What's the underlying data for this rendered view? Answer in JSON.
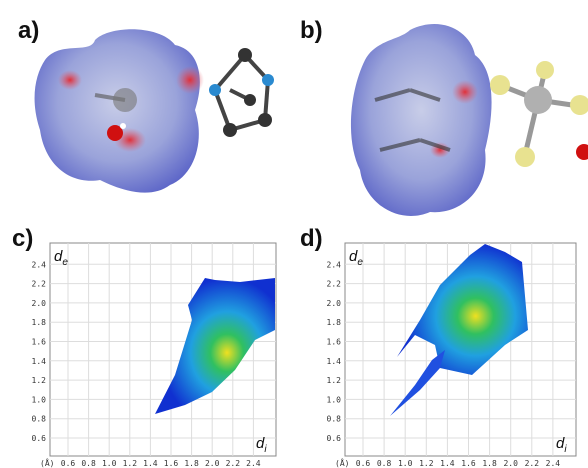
{
  "panels": [
    {
      "label": "a)"
    },
    {
      "label": "b)"
    },
    {
      "label": "c)",
      "y_axis": "d",
      "y_sub": "e",
      "x_axis": "d",
      "x_sub": "i",
      "unit": "(Å)",
      "xticks": [
        "0.6",
        "0.8",
        "1.0",
        "1.2",
        "1.4",
        "1.6",
        "1.8",
        "2.0",
        "2.2",
        "2.4"
      ],
      "yticks": [
        "0.6",
        "0.8",
        "1.0",
        "1.2",
        "1.4",
        "1.6",
        "1.8",
        "2.0",
        "2.2",
        "2.4"
      ]
    },
    {
      "label": "d)",
      "y_axis": "d",
      "y_sub": "e",
      "x_axis": "d",
      "x_sub": "i",
      "unit": "(Å)",
      "xticks": [
        "0.6",
        "0.8",
        "1.0",
        "1.2",
        "1.4",
        "1.6",
        "1.8",
        "2.0",
        "2.2",
        "2.4"
      ],
      "yticks": [
        "0.6",
        "0.8",
        "1.0",
        "1.2",
        "1.4",
        "1.6",
        "1.8",
        "2.0",
        "2.2",
        "2.4"
      ]
    }
  ]
}
